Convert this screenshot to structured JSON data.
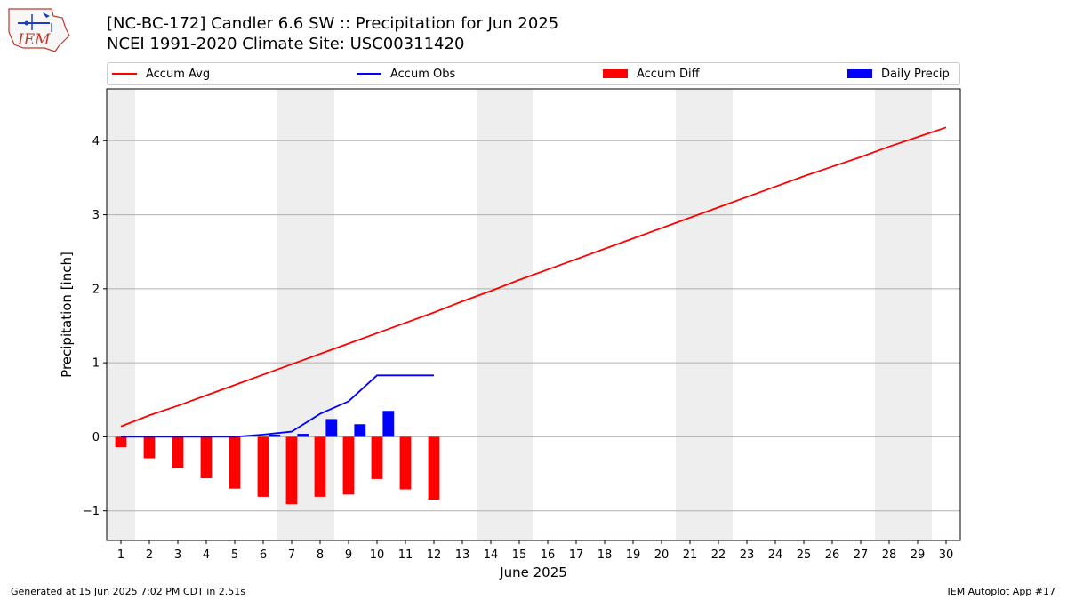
{
  "header": {
    "title_line1": "[NC-BC-172] Candler 6.6 SW :: Precipitation for Jun 2025",
    "title_line2": "NCEI 1991-2020 Climate Site: USC00311420",
    "logo_text": "IEM"
  },
  "legend": {
    "items": [
      "Accum Avg",
      "Accum Obs",
      "Accum Diff",
      "Daily Precip"
    ]
  },
  "colors": {
    "accum_avg": "#ff0000",
    "accum_obs": "#0000ff",
    "accum_diff": "#ff0000",
    "daily_precip": "#0000ff",
    "weekend_shade": "#eeeeee",
    "grid": "#b0b0b0"
  },
  "footer": {
    "left": "Generated at 15 Jun 2025 7:02 PM CDT in 2.51s",
    "right": "IEM Autoplot App #17"
  },
  "chart_data": {
    "type": "bar",
    "xlabel": "June 2025",
    "ylabel": "Precipitation [inch]",
    "xlim": [
      0.5,
      30.5
    ],
    "ylim": [
      -1.4,
      4.7
    ],
    "yticks": [
      -1,
      0,
      1,
      2,
      3,
      4
    ],
    "ytick_labels": [
      "−1",
      "0",
      "1",
      "2",
      "3",
      "4"
    ],
    "xticks": [
      1,
      2,
      3,
      4,
      5,
      6,
      7,
      8,
      9,
      10,
      11,
      12,
      13,
      14,
      15,
      16,
      17,
      18,
      19,
      20,
      21,
      22,
      23,
      24,
      25,
      26,
      27,
      28,
      29,
      30
    ],
    "grid": "horizontal",
    "shaded_days": [
      [
        0.5,
        1.5
      ],
      [
        6.5,
        8.5
      ],
      [
        13.5,
        15.5
      ],
      [
        20.5,
        22.5
      ],
      [
        27.5,
        29.5
      ]
    ],
    "series": [
      {
        "name": "Accum Avg",
        "kind": "line",
        "x": [
          1,
          2,
          3,
          4,
          5,
          6,
          7,
          8,
          9,
          10,
          11,
          12,
          13,
          14,
          15,
          16,
          17,
          18,
          19,
          20,
          21,
          22,
          23,
          24,
          25,
          26,
          27,
          28,
          29,
          30
        ],
        "values": [
          0.14,
          0.29,
          0.42,
          0.56,
          0.7,
          0.84,
          0.98,
          1.12,
          1.26,
          1.4,
          1.54,
          1.68,
          1.83,
          1.97,
          2.12,
          2.26,
          2.4,
          2.54,
          2.68,
          2.82,
          2.96,
          3.1,
          3.24,
          3.38,
          3.52,
          3.65,
          3.78,
          3.92,
          4.05,
          4.18
        ]
      },
      {
        "name": "Accum Obs",
        "kind": "line",
        "x": [
          1,
          2,
          3,
          4,
          5,
          6,
          7,
          8,
          9,
          10,
          11,
          12
        ],
        "values": [
          0.0,
          0.0,
          0.0,
          0.0,
          0.0,
          0.03,
          0.07,
          0.31,
          0.48,
          0.83,
          0.83,
          0.83
        ]
      },
      {
        "name": "Accum Diff",
        "kind": "bar",
        "x": [
          1,
          2,
          3,
          4,
          5,
          6,
          7,
          8,
          9,
          10,
          11,
          12
        ],
        "values": [
          -0.14,
          -0.29,
          -0.42,
          -0.56,
          -0.7,
          -0.81,
          -0.91,
          -0.81,
          -0.78,
          -0.57,
          -0.71,
          -0.85
        ]
      },
      {
        "name": "Daily Precip",
        "kind": "bar",
        "x": [
          1,
          2,
          3,
          4,
          5,
          6,
          7,
          8,
          9,
          10,
          11,
          12
        ],
        "values": [
          0.0,
          0.0,
          0.0,
          0.0,
          0.0,
          0.03,
          0.04,
          0.24,
          0.17,
          0.35,
          0.0,
          0.0
        ]
      }
    ]
  }
}
